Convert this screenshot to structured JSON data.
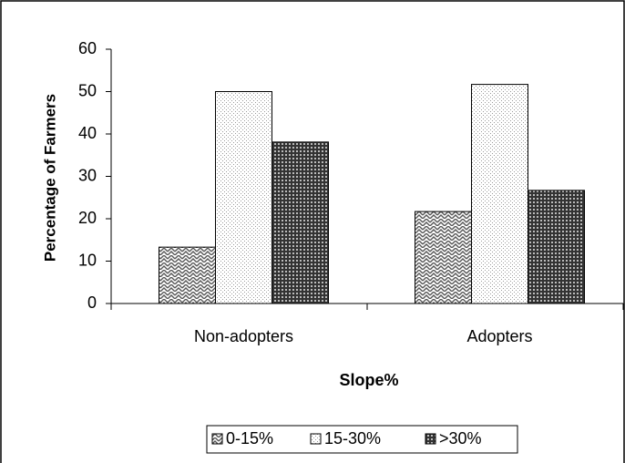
{
  "chart_data": {
    "type": "bar",
    "categories": [
      "Non-adopters",
      "Adopters"
    ],
    "series": [
      {
        "name": "0-15%",
        "color": "#555555",
        "values": [
          13.3,
          21.7
        ]
      },
      {
        "name": "15-30%",
        "color": "#9a9a9a",
        "values": [
          50,
          51.7
        ]
      },
      {
        "name": ">30%",
        "color": "#333333",
        "values": [
          38.1,
          26.7
        ]
      }
    ],
    "xlabel": "Slope%",
    "ylabel": "Percentage of Farmers",
    "ylim": [
      0,
      60
    ],
    "yticks": [
      0,
      10,
      20,
      30,
      40,
      50,
      60
    ],
    "legend": "bottom"
  }
}
